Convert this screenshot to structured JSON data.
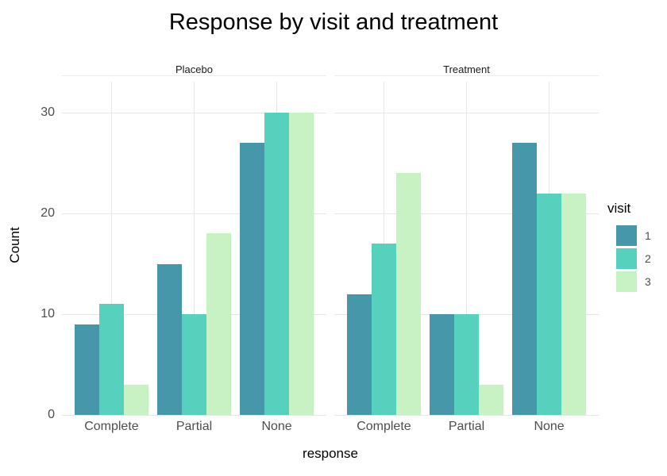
{
  "title": "Response by visit and treatment",
  "legend": {
    "title": "visit",
    "entries": [
      {
        "label": "1",
        "color": "#4597a9"
      },
      {
        "label": "2",
        "color": "#56d1be"
      },
      {
        "label": "3",
        "color": "#c8f2c3"
      }
    ]
  },
  "colors": {
    "grid": "#e6e6e6",
    "panel_top_line": "#ececec",
    "axis_text": "#4d4d4d",
    "strip_text": "#1a1a1a",
    "title_text": "#000000"
  },
  "chart_data": {
    "type": "bar",
    "title": "Response by visit and treatment",
    "xlabel": "response",
    "ylabel": "Count",
    "ylim": [
      0,
      33
    ],
    "y_ticks": [
      0,
      10,
      20,
      30
    ],
    "categories": [
      "Complete",
      "Partial",
      "None"
    ],
    "legend_title": "visit",
    "legend_position": "right",
    "grid": true,
    "bar_colors": [
      "#4597a9",
      "#56d1be",
      "#c8f2c3"
    ],
    "facets": [
      {
        "name": "Placebo",
        "series": [
          {
            "name": "1",
            "values": [
              9,
              15,
              27
            ]
          },
          {
            "name": "2",
            "values": [
              11,
              10,
              30
            ]
          },
          {
            "name": "3",
            "values": [
              3,
              18,
              30
            ]
          }
        ]
      },
      {
        "name": "Treatment",
        "series": [
          {
            "name": "1",
            "values": [
              12,
              10,
              27
            ]
          },
          {
            "name": "2",
            "values": [
              17,
              10,
              22
            ]
          },
          {
            "name": "3",
            "values": [
              24,
              3,
              22
            ]
          }
        ]
      }
    ]
  }
}
